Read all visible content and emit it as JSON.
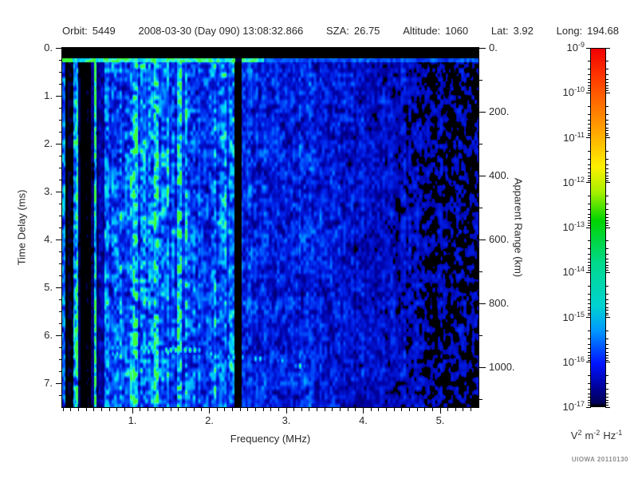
{
  "header": {
    "items": [
      {
        "label": "Orbit:",
        "value": "5449"
      },
      {
        "label": "",
        "value": "2008-03-30 (Day 090) 13:08:32.866"
      },
      {
        "label": "SZA:",
        "value": "26.75"
      },
      {
        "label": "Altitude:",
        "value": "1060"
      },
      {
        "label": "Lat:",
        "value": "3.92"
      },
      {
        "label": "Long:",
        "value": "194.68"
      }
    ]
  },
  "watermark": "UIOWA 20110130",
  "chart_data": {
    "type": "heatmap",
    "description": "Radar sounder ionogram spectrogram: spectral density vs frequency and time delay",
    "x_axis": {
      "label": "Frequency (MHz)",
      "min": 0.09,
      "max": 5.48,
      "major_ticks": [
        1,
        2,
        3,
        4,
        5
      ],
      "minor_step": 0.1,
      "suffix": "."
    },
    "y_axis": {
      "label": "Time Delay (ms)",
      "min": 0,
      "max": 7.5,
      "major_ticks": [
        0,
        1,
        2,
        3,
        4,
        5,
        6,
        7
      ],
      "minor_step": 0.25,
      "suffix": "."
    },
    "y2_axis": {
      "label": "Apparent Range (km)",
      "major_ticks": [
        0,
        200,
        400,
        600,
        800,
        1000
      ],
      "minor_step": 100,
      "km_per_ms": 150,
      "suffix": "."
    },
    "colorbar": {
      "exp_max": -9,
      "exp_min": -17,
      "tick_exponents": [
        -9,
        -10,
        -11,
        -12,
        -13,
        -14,
        -15,
        -16,
        -17
      ],
      "units_parts": [
        {
          "base": "V",
          "exp": "2"
        },
        {
          "base": "m",
          "exp": "-2"
        },
        {
          "base": "Hz",
          "exp": "-1"
        }
      ],
      "gradient": [
        [
          "0%",
          "#f20000"
        ],
        [
          "8%",
          "#ff3800"
        ],
        [
          "22%",
          "#ff9d00"
        ],
        [
          "33%",
          "#fdf000"
        ],
        [
          "40%",
          "#a8f000"
        ],
        [
          "48%",
          "#00d400"
        ],
        [
          "60%",
          "#00d98c"
        ],
        [
          "72%",
          "#00d2d2"
        ],
        [
          "79%",
          "#0096ff"
        ],
        [
          "88%",
          "#0014ff"
        ],
        [
          "95%",
          "#000096"
        ],
        [
          "99%",
          "#00005a"
        ],
        [
          "100%",
          "#000000"
        ]
      ]
    },
    "palette": {
      "background_deep": "#0000a0",
      "speckle_cyan": "#00d8ff",
      "echo_green": "#3cff3c",
      "dropout_black": "#000000"
    },
    "features": {
      "calibration_band_ms": [
        0,
        0.21
      ],
      "transmit_line": {
        "t_ms": 0.25,
        "bright_f_max": 2.7,
        "green_f_max": 0.22
      },
      "interference_null_f": [
        2.33,
        2.41
      ],
      "striped_band_f_max": 0.62,
      "dark_columns_f": [
        [
          0.13,
          0.2
        ],
        [
          0.32,
          0.45
        ]
      ],
      "bright_columns_f": [
        1.02,
        1.3,
        1.62
      ],
      "echo_trace_segments": [
        [
          0.7,
          0.86,
          6.38,
          0.88
        ],
        [
          1.08,
          1.33,
          6.33,
          0.92
        ],
        [
          1.38,
          1.9,
          6.3,
          1.0
        ],
        [
          1.93,
          2.1,
          6.38,
          0.88
        ],
        [
          2.2,
          2.47,
          6.45,
          0.9
        ],
        [
          2.53,
          2.73,
          6.48,
          0.88
        ],
        [
          2.86,
          3.02,
          6.52,
          0.82
        ],
        [
          3.1,
          3.24,
          6.63,
          1.0
        ]
      ],
      "mean_level_points": [
        [
          0.09,
          0.52
        ],
        [
          0.62,
          0.52
        ],
        [
          0.85,
          0.55
        ],
        [
          2.3,
          0.5
        ],
        [
          2.5,
          0.42
        ],
        [
          3.3,
          0.4
        ],
        [
          3.9,
          0.34
        ],
        [
          4.5,
          0.3
        ],
        [
          5.5,
          0.26
        ]
      ],
      "black_threshold_points": [
        [
          0.09,
          0.1
        ],
        [
          3.5,
          0.1
        ],
        [
          4.2,
          0.17
        ],
        [
          4.8,
          0.26
        ],
        [
          5.5,
          0.3
        ]
      ],
      "noise_seed": 20110130
    }
  }
}
